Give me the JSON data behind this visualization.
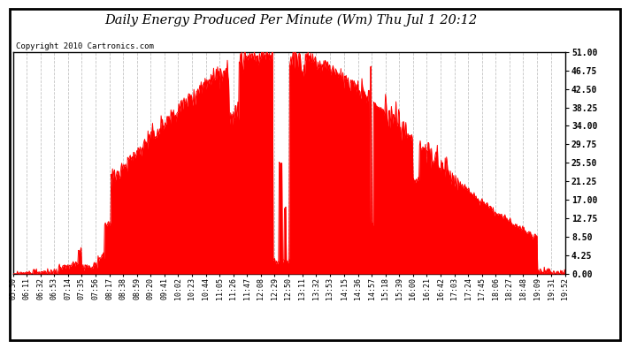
{
  "title": "Daily Energy Produced Per Minute (Wm) Thu Jul 1 20:12",
  "copyright": "Copyright 2010 Cartronics.com",
  "ylabel_right_ticks": [
    0.0,
    4.25,
    8.5,
    12.75,
    17.0,
    21.25,
    25.5,
    29.75,
    34.0,
    38.25,
    42.5,
    46.75,
    51.0
  ],
  "ymax": 51.0,
  "ymin": 0.0,
  "line_color": "#ff0000",
  "bg_color": "#ffffff",
  "grid_color": "#aaaaaa",
  "x_labels": [
    "05:50",
    "06:11",
    "06:32",
    "06:53",
    "07:14",
    "07:35",
    "07:56",
    "08:17",
    "08:38",
    "08:59",
    "09:20",
    "09:41",
    "10:02",
    "10:23",
    "10:44",
    "11:05",
    "11:26",
    "11:47",
    "12:08",
    "12:29",
    "12:50",
    "13:11",
    "13:32",
    "13:53",
    "14:15",
    "14:36",
    "14:57",
    "15:18",
    "15:39",
    "16:00",
    "16:21",
    "16:42",
    "17:03",
    "17:24",
    "17:45",
    "18:06",
    "18:27",
    "18:48",
    "19:09",
    "19:31",
    "19:52"
  ]
}
